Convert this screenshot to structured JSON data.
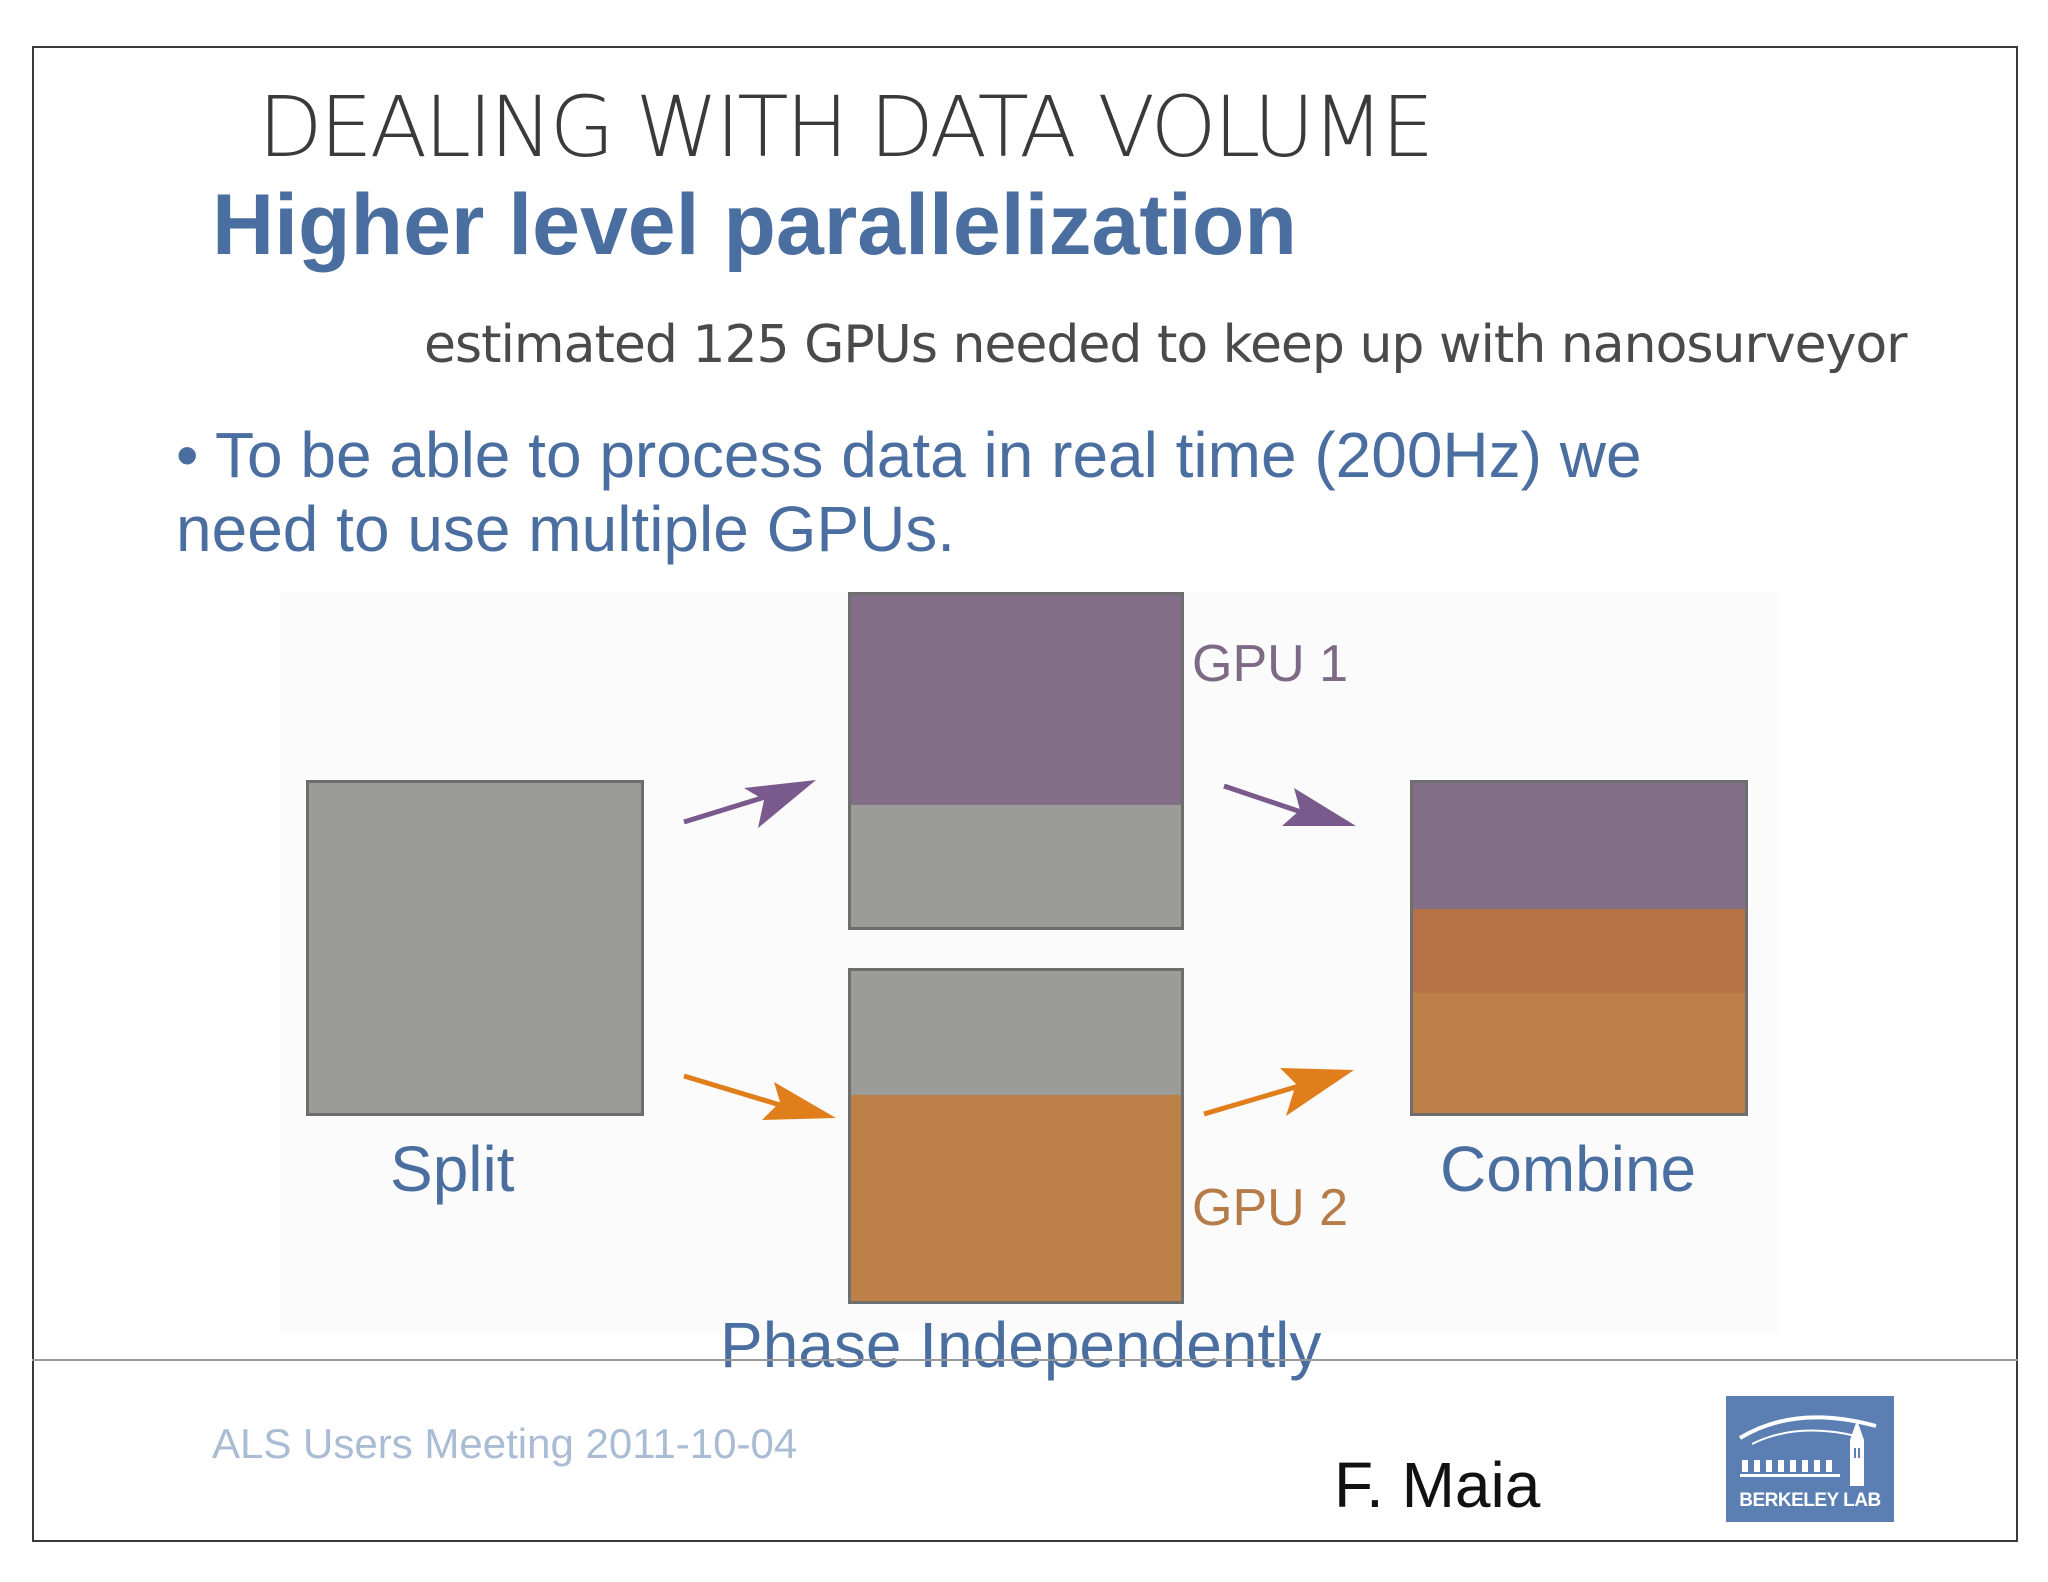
{
  "slide": {
    "title": "DEALING WITH DATA VOLUME",
    "subtitle": "Higher level parallelization",
    "estimate": "estimated 125 GPUs needed to keep up with nanosurveyor",
    "bullet": "• To be able to process data in real time (200Hz) we need to use multiple GPUs."
  },
  "diagram": {
    "split_label": "Split",
    "combine_label": "Combine",
    "phase_label": "Phase Independently",
    "gpu1_label": "GPU 1",
    "gpu2_label": "GPU 2",
    "colors": {
      "gray": "#9b9b9a",
      "purple": "#826e86",
      "orange": "#bd8048",
      "arrow_purple": "#7a5a8c",
      "arrow_orange": "#e07e1c",
      "text_blue": "#4a6ea0"
    }
  },
  "footer": {
    "meeting": "ALS Users Meeting 2011-10-04",
    "author": "F. Maia",
    "logo_text": "BERKELEY LAB"
  }
}
